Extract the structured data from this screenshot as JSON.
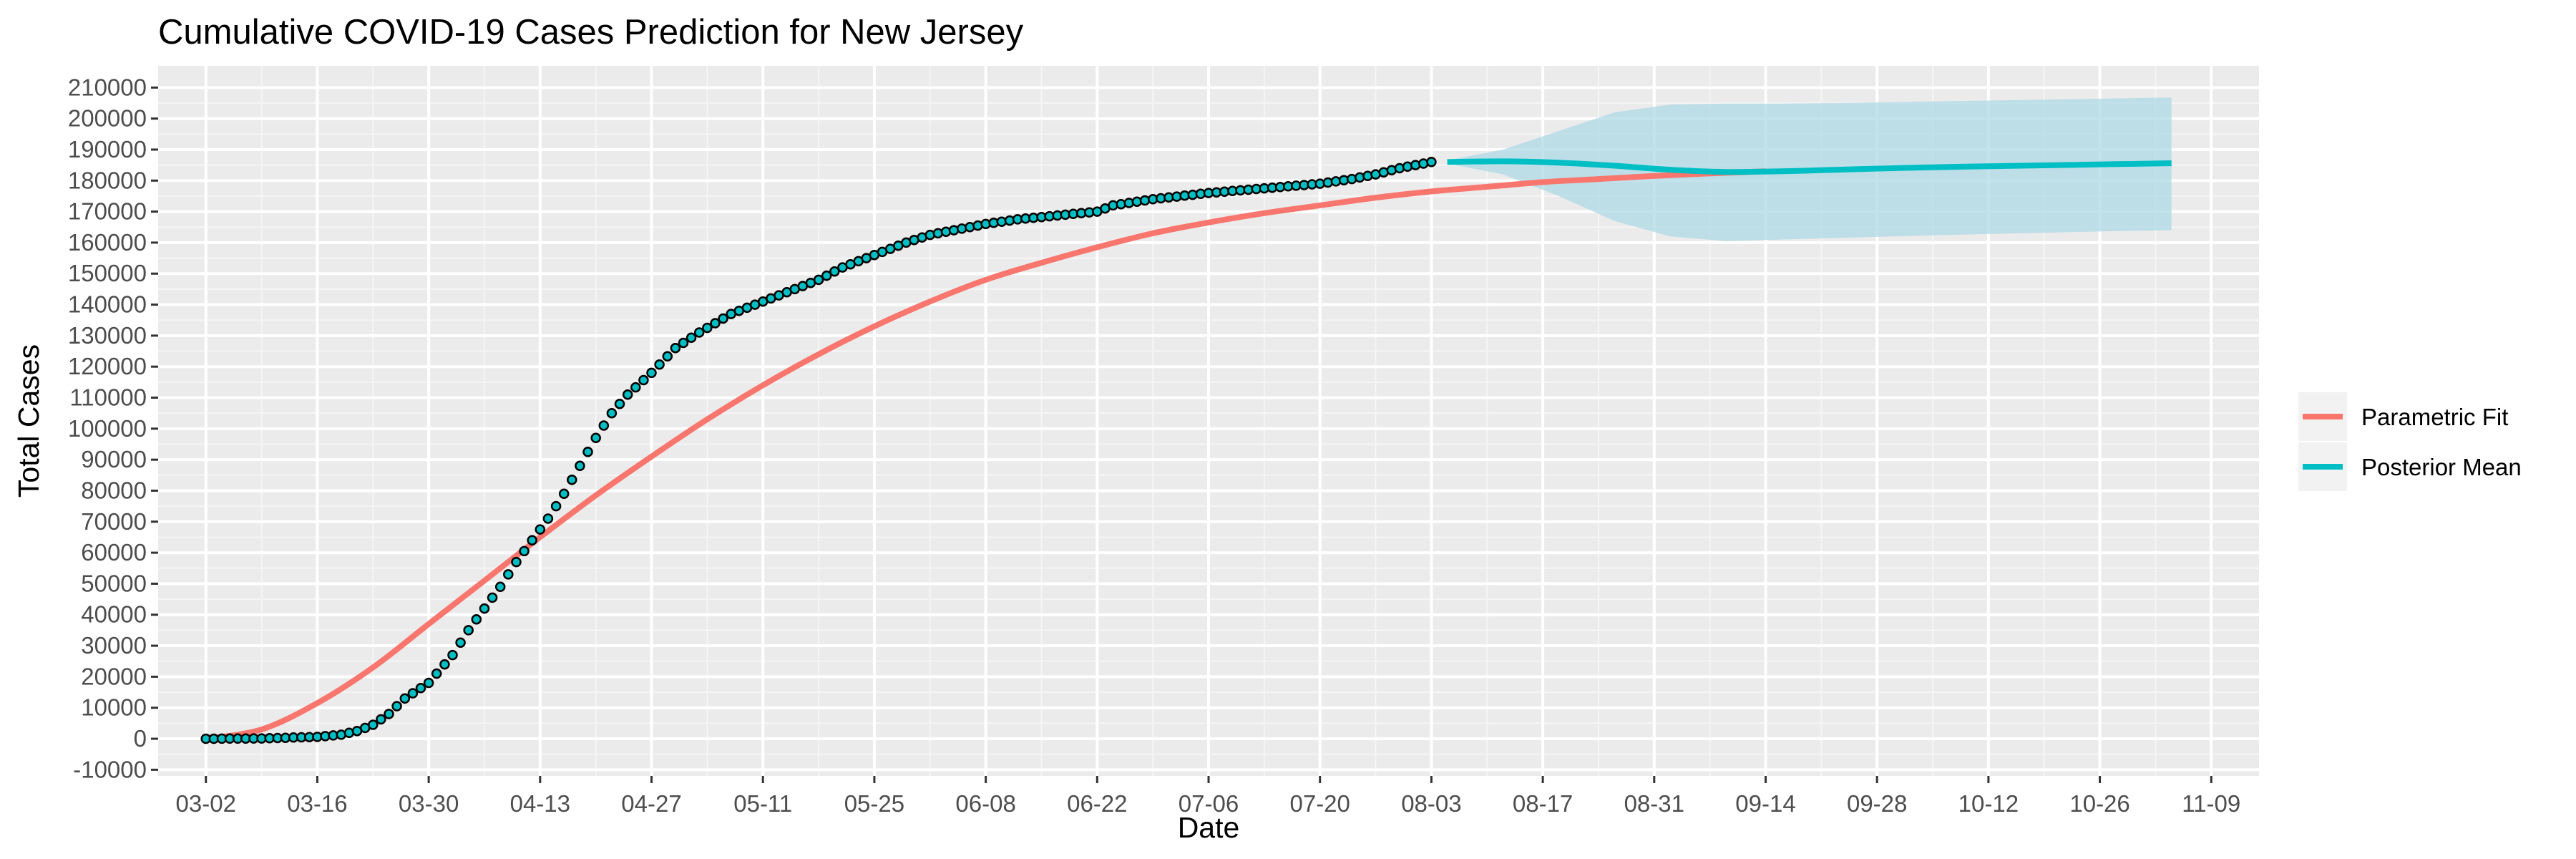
{
  "chart_data": {
    "type": "line",
    "title": "Cumulative COVID-19 Cases Prediction for New Jersey",
    "xlabel": "Date",
    "ylabel": "Total Cases",
    "x_tick_labels": [
      "03-02",
      "03-16",
      "03-30",
      "04-13",
      "04-27",
      "05-11",
      "05-25",
      "06-08",
      "06-22",
      "07-06",
      "07-20",
      "08-03",
      "08-17",
      "08-31",
      "09-14",
      "09-28",
      "10-12",
      "10-26",
      "11-09"
    ],
    "x_tick_days": [
      0,
      14,
      28,
      42,
      56,
      70,
      84,
      98,
      112,
      126,
      140,
      154,
      168,
      182,
      196,
      210,
      224,
      238,
      252
    ],
    "xlim_days": [
      -6,
      258
    ],
    "y_ticks": [
      -10000,
      0,
      10000,
      20000,
      30000,
      40000,
      50000,
      60000,
      70000,
      80000,
      90000,
      100000,
      110000,
      120000,
      130000,
      140000,
      150000,
      160000,
      170000,
      180000,
      190000,
      200000,
      210000
    ],
    "ylim": [
      -12000,
      217000
    ],
    "grid": true,
    "legend": {
      "position": "right",
      "entries": [
        {
          "name": "Parametric Fit",
          "color": "#F8766D"
        },
        {
          "name": "Posterior Mean",
          "color": "#00BFC4"
        }
      ]
    },
    "series": [
      {
        "name": "Parametric Fit",
        "color": "#F8766D",
        "x": [
          0,
          7,
          14,
          21,
          28,
          35,
          42,
          49,
          56,
          63,
          70,
          77,
          84,
          91,
          98,
          105,
          112,
          119,
          126,
          133,
          140,
          147,
          154,
          161,
          168,
          175,
          182,
          189,
          196
        ],
        "y": [
          0,
          3000,
          11500,
          23000,
          37000,
          51000,
          65000,
          78500,
          91000,
          103000,
          114000,
          124000,
          133000,
          141000,
          148000,
          153500,
          158500,
          163000,
          166500,
          169500,
          172000,
          174500,
          176500,
          178000,
          179500,
          180500,
          181500,
          182300,
          183000
        ]
      },
      {
        "name": "Posterior Mean",
        "color": "#00BFC4",
        "x": [
          156,
          163,
          170,
          177,
          184,
          191,
          198,
          205,
          212,
          219,
          226,
          233,
          240,
          247
        ],
        "y": [
          186000,
          186200,
          185800,
          184800,
          183500,
          182800,
          183000,
          183500,
          184000,
          184400,
          184700,
          185000,
          185300,
          185600
        ]
      }
    ],
    "credible_band": {
      "color": "#ADD8E6",
      "x": [
        156,
        163,
        170,
        177,
        184,
        191,
        198,
        205,
        212,
        219,
        226,
        233,
        240,
        247
      ],
      "upper": [
        186500,
        190000,
        196000,
        202000,
        204500,
        204800,
        204800,
        205000,
        205300,
        205600,
        205900,
        206200,
        206500,
        206800
      ],
      "lower": [
        185500,
        182000,
        175000,
        167000,
        162000,
        160500,
        161000,
        161500,
        162000,
        162500,
        162900,
        163300,
        163700,
        164000
      ]
    },
    "observed": {
      "x": [
        0,
        7,
        14,
        17,
        19,
        21,
        23,
        25,
        28,
        31,
        33,
        35,
        37,
        39,
        41,
        43,
        45,
        47,
        49,
        51,
        53,
        56,
        59,
        62,
        64,
        66,
        68,
        70,
        73,
        77,
        80,
        84,
        88,
        91,
        95,
        98,
        102,
        106,
        110,
        112,
        114,
        119,
        126,
        133,
        140,
        144,
        147,
        150,
        154
      ],
      "y": [
        0,
        100,
        600,
        1300,
        2500,
        4500,
        8000,
        13000,
        18000,
        27000,
        35000,
        42000,
        49000,
        57000,
        64000,
        71000,
        79000,
        88000,
        97000,
        105000,
        111000,
        118000,
        126000,
        131000,
        134000,
        137000,
        139000,
        141000,
        144000,
        148000,
        152000,
        156000,
        160000,
        162500,
        164500,
        166000,
        167500,
        168500,
        169500,
        170000,
        172000,
        174000,
        176000,
        177500,
        179000,
        180500,
        182000,
        184000,
        186000
      ]
    }
  }
}
